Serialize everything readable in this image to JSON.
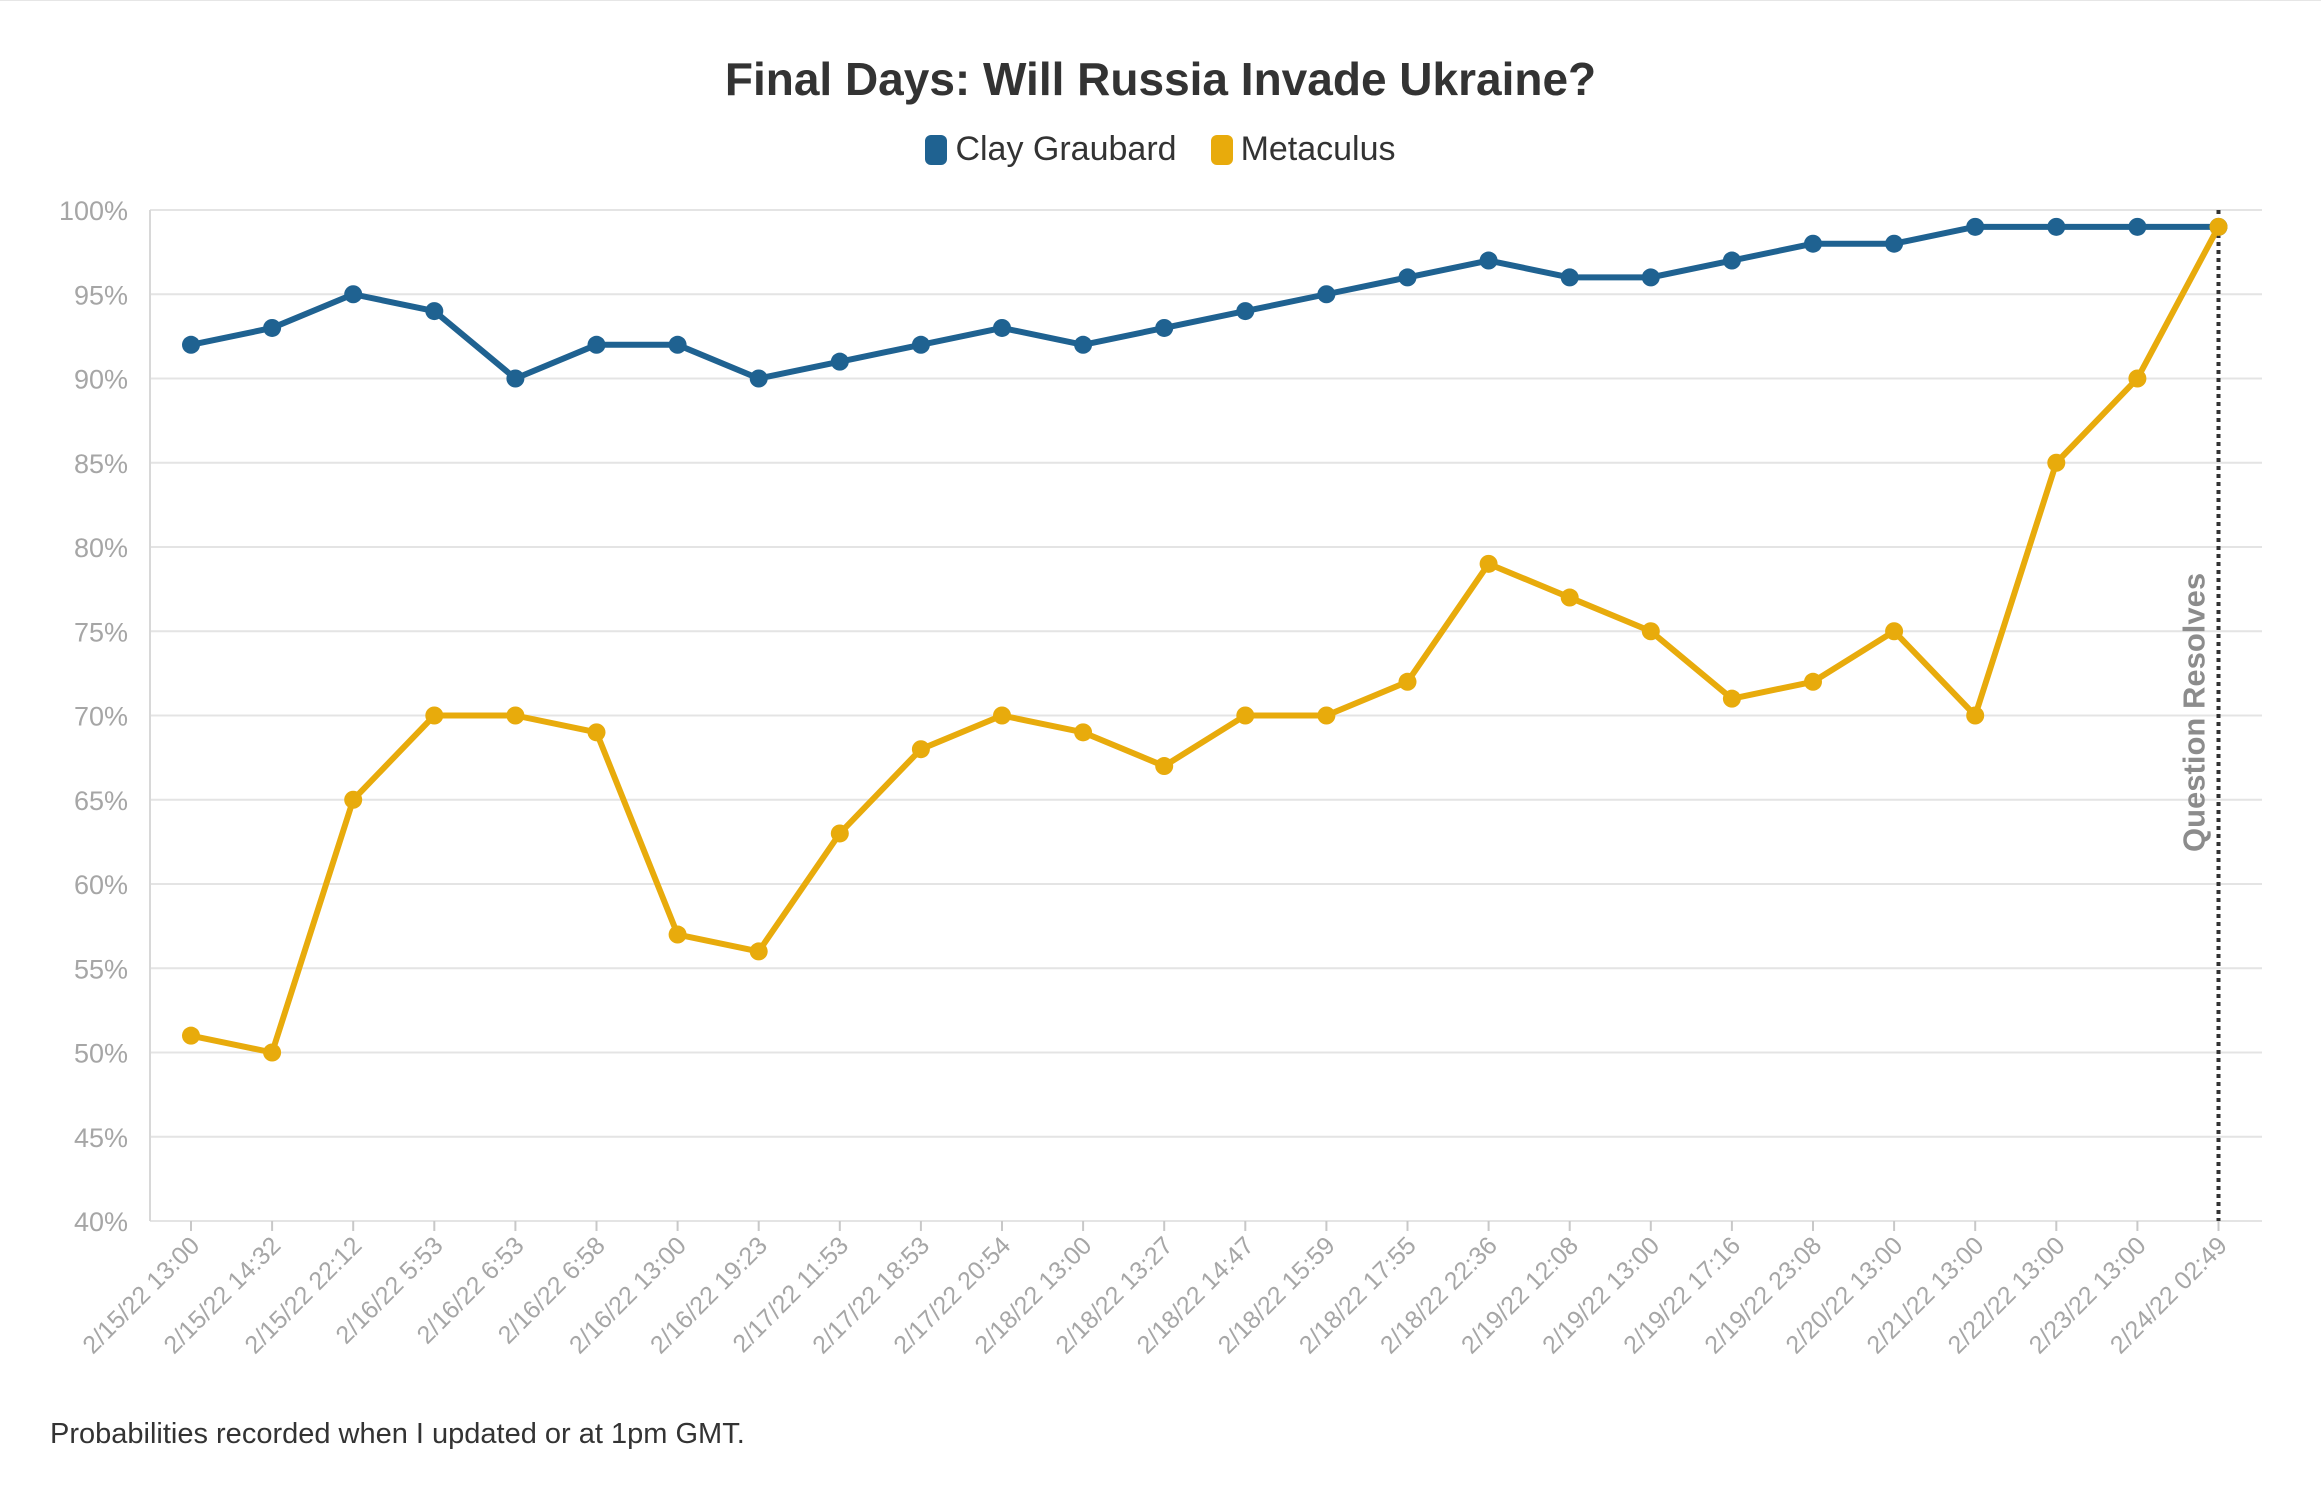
{
  "chart_data": {
    "type": "line",
    "title": "Final Days: Will Russia Invade Ukraine?",
    "categories": [
      "2/15/22 13:00",
      "2/15/22 14:32",
      "2/15/22 22:12",
      "2/16/22 5:53",
      "2/16/22 6:53",
      "2/16/22 6:58",
      "2/16/22 13:00",
      "2/16/22 19:23",
      "2/17/22 11:53",
      "2/17/22 18:53",
      "2/17/22 20:54",
      "2/18/22 13:00",
      "2/18/22 13:27",
      "2/18/22 14:47",
      "2/18/22 15:59",
      "2/18/22 17:55",
      "2/18/22 22:36",
      "2/19/22 12:08",
      "2/19/22 13:00",
      "2/19/22 17:16",
      "2/19/22 23:08",
      "2/20/22 13:00",
      "2/21/22 13:00",
      "2/22/22 13:00",
      "2/23/22 13:00",
      "2/24/22 02:49"
    ],
    "series": [
      {
        "name": "Clay Graubard",
        "color": "#1f6291",
        "values": [
          92,
          93,
          95,
          94,
          90,
          92,
          92,
          90,
          91,
          92,
          93,
          92,
          93,
          94,
          95,
          96,
          97,
          96,
          96,
          97,
          98,
          98,
          99,
          99,
          99,
          99
        ]
      },
      {
        "name": "Metaculus",
        "color": "#e8ab0c",
        "values": [
          51,
          50,
          65,
          70,
          70,
          69,
          57,
          56,
          63,
          68,
          70,
          69,
          67,
          70,
          70,
          72,
          79,
          77,
          75,
          71,
          72,
          75,
          70,
          85,
          90,
          99
        ]
      }
    ],
    "y_ticks": [
      "100%",
      "95%",
      "90%",
      "85%",
      "80%",
      "75%",
      "70%",
      "65%",
      "60%",
      "55%",
      "50%",
      "45%",
      "40%"
    ],
    "ylim": [
      40,
      100
    ],
    "grid": true,
    "legend_position": "top-center",
    "annotation": {
      "label": "Question Resolves",
      "at_category": "2/24/22 02:49"
    }
  },
  "footnote": "Probabilities recorded when I updated or at 1pm GMT."
}
